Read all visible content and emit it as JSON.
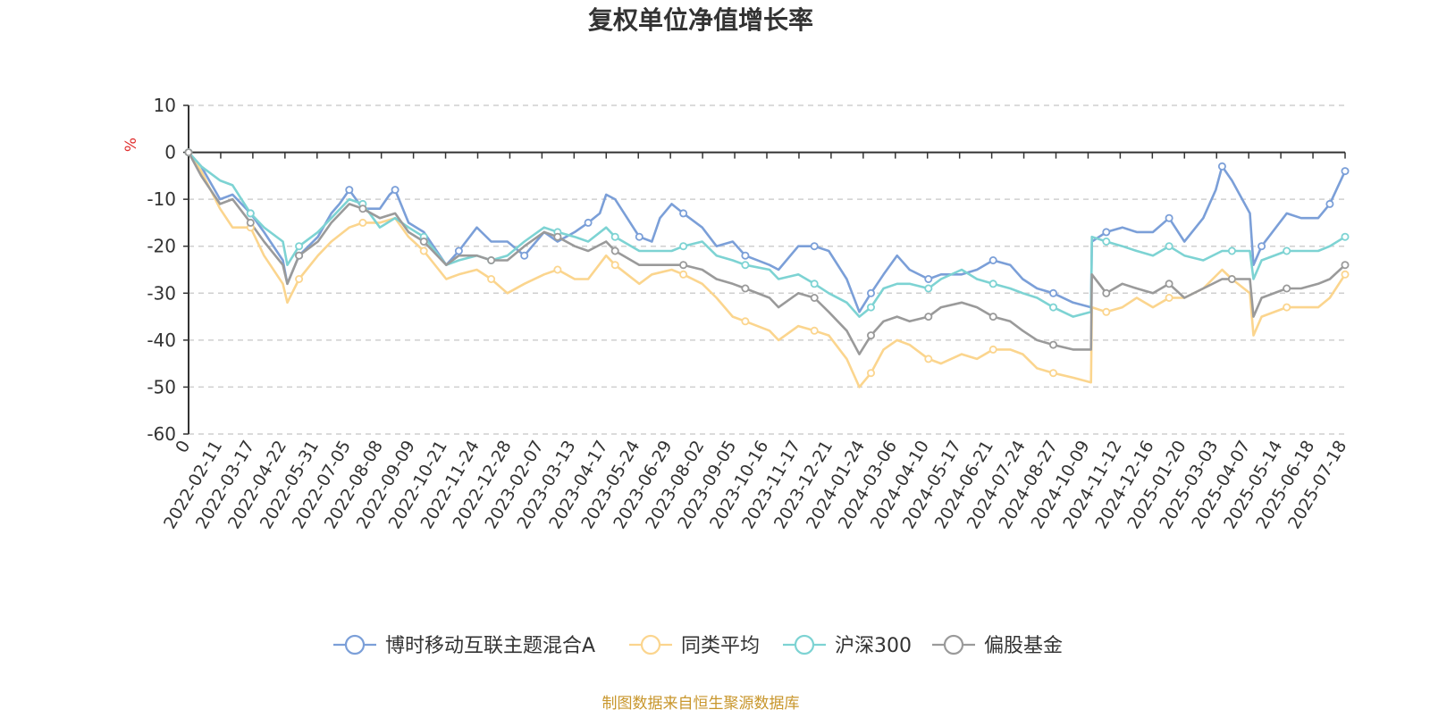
{
  "chart_data": {
    "type": "line",
    "title": "复权单位净值增长率",
    "ylabel": "%",
    "ylim": [
      -60,
      10
    ],
    "yticks": [
      10,
      0,
      -10,
      -20,
      -30,
      -40,
      -50,
      -60
    ],
    "xlim": [
      "2022-01-07",
      "2025-07-18"
    ],
    "xtick_labels": [
      "0",
      "2022-02-11",
      "2022-03-17",
      "2022-04-22",
      "2022-05-31",
      "2022-07-05",
      "2022-08-08",
      "2022-09-09",
      "2022-10-21",
      "2022-11-24",
      "2022-12-28",
      "2023-02-07",
      "2023-03-13",
      "2023-04-17",
      "2023-05-24",
      "2023-06-29",
      "2023-08-02",
      "2023-09-05",
      "2023-10-16",
      "2023-11-17",
      "2023-12-21",
      "2024-01-24",
      "2024-03-06",
      "2024-04-10",
      "2024-05-17",
      "2024-06-21",
      "2024-07-24",
      "2024-08-27",
      "2024-10-09",
      "2024-11-12",
      "2024-12-16",
      "2025-01-20",
      "2025-03-03",
      "2025-04-07",
      "2025-05-14",
      "2025-06-18",
      "2025-07-18"
    ],
    "grid": true,
    "legend_position": "bottom",
    "series": [
      {
        "name": "博时移动互联主题混合A",
        "color": "#7b9fd8",
        "x": [
          "2022-01-07",
          "2022-01-21",
          "2022-02-11",
          "2022-02-25",
          "2022-03-17",
          "2022-04-01",
          "2022-04-22",
          "2022-04-27",
          "2022-05-10",
          "2022-05-31",
          "2022-06-15",
          "2022-06-24",
          "2022-07-05",
          "2022-07-20",
          "2022-08-08",
          "2022-08-19",
          "2022-08-25",
          "2022-09-09",
          "2022-09-26",
          "2022-10-21",
          "2022-11-04",
          "2022-11-24",
          "2022-12-10",
          "2022-12-28",
          "2023-01-16",
          "2023-02-07",
          "2023-02-22",
          "2023-03-13",
          "2023-03-28",
          "2023-04-10",
          "2023-04-17",
          "2023-04-27",
          "2023-05-24",
          "2023-06-07",
          "2023-06-16",
          "2023-06-29",
          "2023-07-12",
          "2023-08-02",
          "2023-08-18",
          "2023-09-05",
          "2023-09-19",
          "2023-10-16",
          "2023-10-26",
          "2023-11-17",
          "2023-12-05",
          "2023-12-21",
          "2024-01-10",
          "2024-01-24",
          "2024-02-06",
          "2024-02-20",
          "2024-03-06",
          "2024-03-20",
          "2024-04-10",
          "2024-04-24",
          "2024-05-17",
          "2024-06-03",
          "2024-06-21",
          "2024-07-10",
          "2024-07-24",
          "2024-08-09",
          "2024-08-27",
          "2024-09-18",
          "2024-10-08",
          "2024-10-09",
          "2024-10-25",
          "2024-11-12",
          "2024-11-28",
          "2024-12-16",
          "2025-01-03",
          "2025-01-20",
          "2025-02-10",
          "2025-02-24",
          "2025-03-03",
          "2025-03-14",
          "2025-04-03",
          "2025-04-07",
          "2025-04-16",
          "2025-05-14",
          "2025-05-30",
          "2025-06-18",
          "2025-07-01",
          "2025-07-18"
        ],
        "values": [
          0,
          -3,
          -10,
          -9,
          -13,
          -17,
          -23,
          -28,
          -22,
          -18,
          -13,
          -11,
          -8,
          -12,
          -12,
          -9,
          -8,
          -15,
          -17,
          -24,
          -21,
          -16,
          -19,
          -19,
          -22,
          -17,
          -19,
          -17,
          -15,
          -13,
          -9,
          -10,
          -18,
          -19,
          -14,
          -11,
          -13,
          -16,
          -20,
          -19,
          -22,
          -24,
          -25,
          -20,
          -20,
          -21,
          -27,
          -34,
          -30,
          -26,
          -22,
          -25,
          -27,
          -26,
          -26,
          -25,
          -23,
          -24,
          -27,
          -29,
          -30,
          -32,
          -33,
          -19,
          -17,
          -16,
          -17,
          -17,
          -14,
          -19,
          -14,
          -8,
          -3,
          -6,
          -13,
          -24,
          -20,
          -13,
          -14,
          -14,
          -11,
          -4
        ]
      },
      {
        "name": "同类平均",
        "color": "#fbd58e",
        "x": [
          "2022-01-07",
          "2022-01-21",
          "2022-02-11",
          "2022-02-25",
          "2022-03-17",
          "2022-04-01",
          "2022-04-22",
          "2022-04-27",
          "2022-05-10",
          "2022-05-31",
          "2022-06-15",
          "2022-07-05",
          "2022-07-20",
          "2022-08-08",
          "2022-08-25",
          "2022-09-09",
          "2022-09-26",
          "2022-10-21",
          "2022-11-04",
          "2022-11-24",
          "2022-12-10",
          "2022-12-28",
          "2023-01-16",
          "2023-02-07",
          "2023-02-22",
          "2023-03-13",
          "2023-03-28",
          "2023-04-17",
          "2023-04-27",
          "2023-05-24",
          "2023-06-07",
          "2023-06-29",
          "2023-07-12",
          "2023-08-02",
          "2023-08-18",
          "2023-09-05",
          "2023-09-19",
          "2023-10-16",
          "2023-10-26",
          "2023-11-17",
          "2023-12-05",
          "2023-12-21",
          "2024-01-10",
          "2024-01-24",
          "2024-02-06",
          "2024-02-20",
          "2024-03-06",
          "2024-03-20",
          "2024-04-10",
          "2024-04-24",
          "2024-05-17",
          "2024-06-03",
          "2024-06-21",
          "2024-07-10",
          "2024-07-24",
          "2024-08-09",
          "2024-08-27",
          "2024-09-18",
          "2024-10-08",
          "2024-10-09",
          "2024-10-25",
          "2024-11-12",
          "2024-11-28",
          "2024-12-16",
          "2025-01-03",
          "2025-01-20",
          "2025-02-10",
          "2025-03-03",
          "2025-03-14",
          "2025-04-03",
          "2025-04-07",
          "2025-04-16",
          "2025-05-14",
          "2025-05-30",
          "2025-06-18",
          "2025-07-01",
          "2025-07-18"
        ],
        "values": [
          0,
          -4,
          -12,
          -16,
          -16,
          -22,
          -28,
          -32,
          -27,
          -22,
          -19,
          -16,
          -15,
          -15,
          -14,
          -18,
          -21,
          -27,
          -26,
          -25,
          -27,
          -30,
          -28,
          -26,
          -25,
          -27,
          -27,
          -22,
          -24,
          -28,
          -26,
          -25,
          -26,
          -28,
          -31,
          -35,
          -36,
          -38,
          -40,
          -37,
          -38,
          -39,
          -44,
          -50,
          -47,
          -42,
          -40,
          -41,
          -44,
          -45,
          -43,
          -44,
          -42,
          -42,
          -43,
          -46,
          -47,
          -48,
          -49,
          -33,
          -34,
          -33,
          -31,
          -33,
          -31,
          -31,
          -29,
          -25,
          -27,
          -30,
          -39,
          -35,
          -33,
          -33,
          -33,
          -31,
          -26
        ]
      },
      {
        "name": "沪深300",
        "color": "#7dd3d3",
        "x": [
          "2022-01-07",
          "2022-01-21",
          "2022-02-11",
          "2022-02-25",
          "2022-03-17",
          "2022-04-01",
          "2022-04-22",
          "2022-04-27",
          "2022-05-10",
          "2022-05-31",
          "2022-06-15",
          "2022-07-05",
          "2022-07-20",
          "2022-08-08",
          "2022-08-25",
          "2022-09-09",
          "2022-09-26",
          "2022-10-21",
          "2022-11-04",
          "2022-11-24",
          "2022-12-10",
          "2022-12-28",
          "2023-01-16",
          "2023-02-07",
          "2023-02-22",
          "2023-03-13",
          "2023-03-28",
          "2023-04-17",
          "2023-04-27",
          "2023-05-24",
          "2023-06-07",
          "2023-06-29",
          "2023-07-12",
          "2023-08-02",
          "2023-08-18",
          "2023-09-05",
          "2023-09-19",
          "2023-10-16",
          "2023-10-26",
          "2023-11-17",
          "2023-12-05",
          "2023-12-21",
          "2024-01-10",
          "2024-01-24",
          "2024-02-06",
          "2024-02-20",
          "2024-03-06",
          "2024-03-20",
          "2024-04-10",
          "2024-04-24",
          "2024-05-17",
          "2024-06-03",
          "2024-06-21",
          "2024-07-10",
          "2024-07-24",
          "2024-08-09",
          "2024-08-27",
          "2024-09-18",
          "2024-10-08",
          "2024-10-09",
          "2024-10-25",
          "2024-11-12",
          "2024-11-28",
          "2024-12-16",
          "2025-01-03",
          "2025-01-20",
          "2025-02-10",
          "2025-03-03",
          "2025-03-14",
          "2025-04-03",
          "2025-04-07",
          "2025-04-16",
          "2025-05-14",
          "2025-05-30",
          "2025-06-18",
          "2025-07-01",
          "2025-07-18"
        ],
        "values": [
          0,
          -3,
          -6,
          -7,
          -13,
          -16,
          -19,
          -24,
          -20,
          -17,
          -14,
          -10,
          -11,
          -16,
          -14,
          -16,
          -18,
          -24,
          -23,
          -22,
          -23,
          -22,
          -19,
          -16,
          -17,
          -18,
          -19,
          -16,
          -18,
          -21,
          -21,
          -21,
          -20,
          -19,
          -22,
          -23,
          -24,
          -25,
          -27,
          -26,
          -28,
          -30,
          -32,
          -35,
          -33,
          -29,
          -28,
          -28,
          -29,
          -27,
          -25,
          -27,
          -28,
          -29,
          -30,
          -31,
          -33,
          -35,
          -34,
          -18,
          -19,
          -20,
          -21,
          -22,
          -20,
          -22,
          -23,
          -21,
          -21,
          -21,
          -27,
          -23,
          -21,
          -21,
          -21,
          -20,
          -18
        ]
      },
      {
        "name": "偏股基金",
        "color": "#9a9a9a",
        "x": [
          "2022-01-07",
          "2022-01-21",
          "2022-02-11",
          "2022-02-25",
          "2022-03-17",
          "2022-04-01",
          "2022-04-22",
          "2022-04-27",
          "2022-05-10",
          "2022-05-31",
          "2022-06-15",
          "2022-07-05",
          "2022-07-20",
          "2022-08-08",
          "2022-08-25",
          "2022-09-09",
          "2022-09-26",
          "2022-10-21",
          "2022-11-04",
          "2022-11-24",
          "2022-12-10",
          "2022-12-28",
          "2023-01-16",
          "2023-02-07",
          "2023-02-22",
          "2023-03-13",
          "2023-03-28",
          "2023-04-17",
          "2023-04-27",
          "2023-05-24",
          "2023-06-07",
          "2023-06-29",
          "2023-07-12",
          "2023-08-02",
          "2023-08-18",
          "2023-09-05",
          "2023-09-19",
          "2023-10-16",
          "2023-10-26",
          "2023-11-17",
          "2023-12-05",
          "2023-12-21",
          "2024-01-10",
          "2024-01-24",
          "2024-02-06",
          "2024-02-20",
          "2024-03-06",
          "2024-03-20",
          "2024-04-10",
          "2024-04-24",
          "2024-05-17",
          "2024-06-03",
          "2024-06-21",
          "2024-07-10",
          "2024-07-24",
          "2024-08-09",
          "2024-08-27",
          "2024-09-18",
          "2024-10-08",
          "2024-10-09",
          "2024-10-25",
          "2024-11-12",
          "2024-11-28",
          "2024-12-16",
          "2025-01-03",
          "2025-01-20",
          "2025-02-10",
          "2025-03-03",
          "2025-03-14",
          "2025-04-03",
          "2025-04-07",
          "2025-04-16",
          "2025-05-14",
          "2025-05-30",
          "2025-06-18",
          "2025-07-01",
          "2025-07-18"
        ],
        "values": [
          0,
          -5,
          -11,
          -10,
          -15,
          -19,
          -24,
          -28,
          -22,
          -19,
          -15,
          -11,
          -12,
          -14,
          -13,
          -17,
          -19,
          -24,
          -22,
          -22,
          -23,
          -23,
          -20,
          -17,
          -18,
          -20,
          -21,
          -19,
          -21,
          -24,
          -24,
          -24,
          -24,
          -25,
          -27,
          -28,
          -29,
          -31,
          -33,
          -30,
          -31,
          -34,
          -38,
          -43,
          -39,
          -36,
          -35,
          -36,
          -35,
          -33,
          -32,
          -33,
          -35,
          -36,
          -38,
          -40,
          -41,
          -42,
          -42,
          -26,
          -30,
          -28,
          -29,
          -30,
          -28,
          -31,
          -29,
          -27,
          -27,
          -27,
          -35,
          -31,
          -29,
          -29,
          -28,
          -27,
          -24
        ]
      }
    ]
  },
  "source_note": "制图数据来自恒生聚源数据库"
}
